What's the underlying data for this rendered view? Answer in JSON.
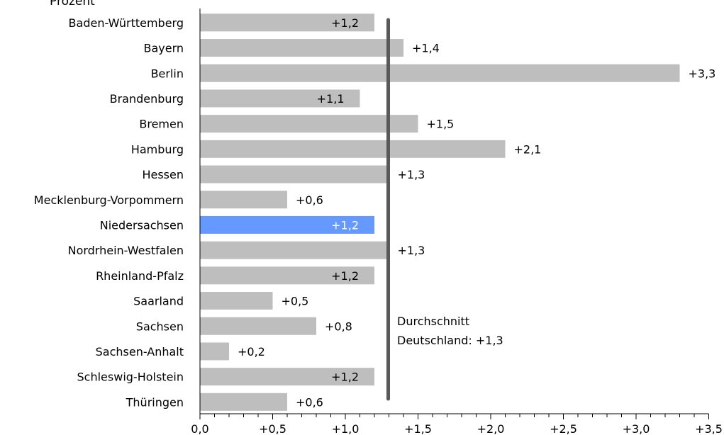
{
  "header": {
    "unit_label": "Prozent"
  },
  "colors": {
    "bar": "#bebebe",
    "highlight": "#6699ff",
    "average_line": "#595959",
    "text": "#000000",
    "highlight_text": "#ffffff"
  },
  "chart_data": {
    "type": "bar",
    "orientation": "horizontal",
    "ylabel": "Prozent",
    "categories": [
      "Baden-Württemberg",
      "Bayern",
      "Berlin",
      "Brandenburg",
      "Bremen",
      "Hamburg",
      "Hessen",
      "Mecklenburg-Vorpommern",
      "Niedersachsen",
      "Nordrhein-Westfalen",
      "Rheinland-Pfalz",
      "Saarland",
      "Sachsen",
      "Sachsen-Anhalt",
      "Schleswig-Holstein",
      "Thüringen"
    ],
    "values": [
      1.2,
      1.4,
      3.3,
      1.1,
      1.5,
      2.1,
      1.3,
      0.6,
      1.2,
      1.3,
      1.2,
      0.5,
      0.8,
      0.2,
      1.2,
      0.6
    ],
    "value_labels": [
      "+1,2",
      "+1,4",
      "+3,3",
      "+1,1",
      "+1,5",
      "+2,1",
      "+1,3",
      "+0,6",
      "+1,2",
      "+1,3",
      "+1,2",
      "+0,5",
      "+0,8",
      "+0,2",
      "+1,2",
      "+0,6"
    ],
    "label_inside": [
      true,
      false,
      false,
      true,
      false,
      false,
      false,
      false,
      true,
      false,
      true,
      false,
      false,
      false,
      true,
      false
    ],
    "highlight_category": "Niedersachsen",
    "xlim": [
      0,
      3.5
    ],
    "xticks": [
      0,
      0.5,
      1.0,
      1.5,
      2.0,
      2.5,
      3.0,
      3.5
    ],
    "xtick_labels": [
      "0,0",
      "+0,5",
      "+1,0",
      "+1,5",
      "+2,0",
      "+2,5",
      "+3,0",
      "+3,5"
    ],
    "grid": false,
    "average": {
      "value": 1.3,
      "label_lines": [
        "Durchschnitt",
        "Deutschland: +1,3"
      ]
    }
  }
}
